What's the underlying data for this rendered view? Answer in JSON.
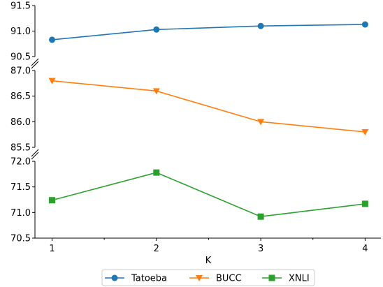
{
  "chart_data": [
    {
      "type": "line",
      "panel": "top",
      "x": [
        1,
        2,
        3,
        4
      ],
      "series": [
        {
          "name": "Tatoeba",
          "values": [
            90.83,
            91.03,
            91.1,
            91.13
          ],
          "color": "#1f77b4",
          "marker": "circle"
        }
      ],
      "ylim": [
        90.5,
        91.5
      ],
      "yticks": [
        "90.5",
        "91.0",
        "91.5"
      ],
      "grid": false
    },
    {
      "type": "line",
      "panel": "middle",
      "x": [
        1,
        2,
        3,
        4
      ],
      "series": [
        {
          "name": "BUCC",
          "values": [
            86.8,
            86.6,
            86.0,
            85.8
          ],
          "color": "#ff7f0e",
          "marker": "triangle-down"
        }
      ],
      "ylim": [
        85.5,
        87.0
      ],
      "yticks": [
        "85.5",
        "86.0",
        "86.5",
        "87.0"
      ],
      "grid": false
    },
    {
      "type": "line",
      "panel": "bottom",
      "x": [
        1,
        2,
        3,
        4
      ],
      "series": [
        {
          "name": "XNLI",
          "values": [
            71.24,
            71.78,
            70.92,
            71.17
          ],
          "color": "#2ca02c",
          "marker": "square"
        }
      ],
      "ylim": [
        70.5,
        72.0
      ],
      "yticks": [
        "70.5",
        "71.0",
        "71.5",
        "72.0"
      ],
      "xticks": [
        "1",
        "2",
        "3",
        "4"
      ],
      "xlabel": "K",
      "grid": false
    }
  ],
  "legend": {
    "placement": "bottom-center",
    "entries": [
      "Tatoeba",
      "BUCC",
      "XNLI"
    ]
  }
}
